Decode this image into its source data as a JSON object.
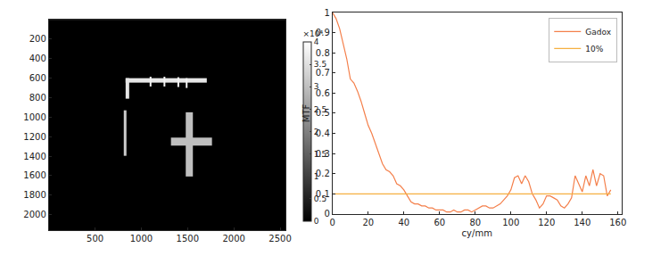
{
  "chart_data": [
    {
      "type": "heatmap",
      "xlim": [
        0,
        2560
      ],
      "ylim": [
        2160,
        0
      ],
      "xticks": [
        500,
        1000,
        1500,
        2000,
        2500
      ],
      "yticks": [
        200,
        400,
        600,
        800,
        1000,
        1200,
        1400,
        1600,
        1800,
        2000
      ],
      "grid": false,
      "cells": [
        {
          "x": [
            0,
            2560
          ],
          "y": [
            0,
            2160
          ],
          "value": 0
        },
        {
          "x": [
            830,
            1710
          ],
          "y": [
            600,
            650
          ],
          "value": 36000
        },
        {
          "x": [
            1090,
            1105
          ],
          "y": [
            585,
            690
          ],
          "value": 38000
        },
        {
          "x": [
            1240,
            1255
          ],
          "y": [
            585,
            690
          ],
          "value": 38000
        },
        {
          "x": [
            1390,
            1405
          ],
          "y": [
            590,
            695
          ],
          "value": 38000
        },
        {
          "x": [
            1480,
            1495
          ],
          "y": [
            600,
            700
          ],
          "value": 38000
        },
        {
          "x": [
            830,
            870
          ],
          "y": [
            600,
            810
          ],
          "value": 36000
        },
        {
          "x": [
            810,
            840
          ],
          "y": [
            930,
            1400
          ],
          "value": 32000
        },
        {
          "x": [
            1480,
            1560
          ],
          "y": [
            950,
            1610
          ],
          "value": 30000
        },
        {
          "x": [
            1320,
            1760
          ],
          "y": [
            1210,
            1290
          ],
          "value": 30000
        }
      ],
      "colorbar": {
        "range": [
          0,
          40000
        ],
        "title": "×10⁴",
        "ticks": [
          0,
          {
            "value": 5000,
            "label": "0.5"
          },
          {
            "value": 10000,
            "label": "1"
          },
          {
            "value": 15000,
            "label": "1.5"
          },
          {
            "value": 20000,
            "label": "2"
          },
          {
            "value": 25000,
            "label": "2.5"
          },
          {
            "value": 30000,
            "label": "3"
          },
          {
            "value": 35000,
            "label": "3.5"
          },
          {
            "value": 40000,
            "label": "4"
          }
        ]
      }
    },
    {
      "type": "line",
      "xlabel": "cy/mm",
      "ylabel": "MTF",
      "xlim": [
        0,
        162
      ],
      "ylim": [
        0,
        1
      ],
      "xticks": [
        0,
        20,
        40,
        60,
        80,
        100,
        120,
        140,
        160
      ],
      "yticks": [
        0,
        0.1,
        0.2,
        0.3,
        0.4,
        0.5,
        0.6,
        0.7,
        0.8,
        0.9,
        1
      ],
      "grid": false,
      "legend": "upper right",
      "series": [
        {
          "name": "Gadox",
          "color": "#f47f4a",
          "x": [
            0,
            2,
            4,
            6,
            8,
            10,
            12,
            14,
            16,
            18,
            20,
            22,
            24,
            26,
            28,
            30,
            32,
            34,
            36,
            38,
            40,
            42,
            44,
            46,
            48,
            50,
            52,
            54,
            56,
            58,
            60,
            62,
            64,
            66,
            68,
            70,
            72,
            74,
            76,
            78,
            80,
            82,
            84,
            86,
            88,
            90,
            92,
            94,
            96,
            98,
            100,
            102,
            104,
            106,
            108,
            110,
            112,
            114,
            116,
            118,
            120,
            122,
            124,
            126,
            128,
            130,
            132,
            134,
            136,
            138,
            140,
            142,
            144,
            146,
            148,
            150,
            152,
            154,
            156
          ],
          "values": [
            1.0,
            0.97,
            0.92,
            0.85,
            0.77,
            0.67,
            0.65,
            0.61,
            0.56,
            0.5,
            0.44,
            0.4,
            0.35,
            0.3,
            0.25,
            0.22,
            0.21,
            0.19,
            0.15,
            0.14,
            0.12,
            0.09,
            0.06,
            0.05,
            0.05,
            0.04,
            0.04,
            0.03,
            0.03,
            0.02,
            0.02,
            0.02,
            0.01,
            0.01,
            0.02,
            0.01,
            0.01,
            0.02,
            0.02,
            0.01,
            0.02,
            0.03,
            0.04,
            0.04,
            0.03,
            0.03,
            0.04,
            0.05,
            0.07,
            0.09,
            0.12,
            0.18,
            0.19,
            0.15,
            0.19,
            0.16,
            0.1,
            0.07,
            0.03,
            0.05,
            0.09,
            0.09,
            0.08,
            0.07,
            0.04,
            0.03,
            0.05,
            0.08,
            0.19,
            0.15,
            0.11,
            0.19,
            0.14,
            0.22,
            0.14,
            0.2,
            0.19,
            0.09,
            0.12
          ]
        },
        {
          "name": "10%",
          "color": "#f5b041",
          "x": [
            0,
            156
          ],
          "values": [
            0.1,
            0.1
          ]
        }
      ]
    }
  ]
}
